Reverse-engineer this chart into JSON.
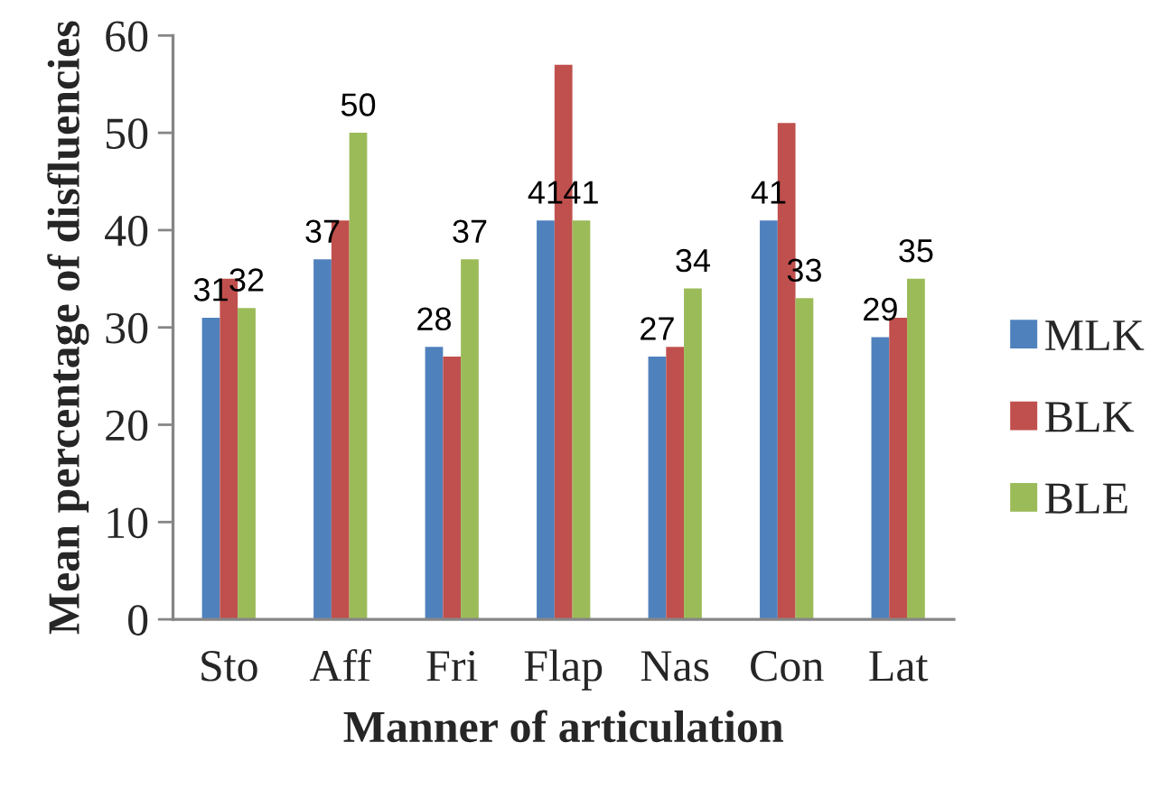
{
  "chart_data": {
    "type": "bar",
    "xlabel": "Manner of articulation",
    "ylabel": "Mean percentage of disfluencies",
    "categories": [
      "Sto",
      "Aff",
      "Fri",
      "Flap",
      "Nas",
      "Con",
      "Lat"
    ],
    "series": [
      {
        "name": "MLK",
        "color": "#4f81bd",
        "values": [
          31,
          37,
          28,
          41,
          27,
          41,
          29
        ],
        "value_labels": [
          "31",
          "37",
          "28",
          "41",
          "27",
          "41",
          "29"
        ]
      },
      {
        "name": "BLK",
        "color": "#c0504d",
        "values": [
          35,
          41,
          27,
          57,
          28,
          51,
          31
        ]
      },
      {
        "name": "BLE",
        "color": "#9bbb59",
        "values": [
          32,
          50,
          37,
          41,
          34,
          33,
          35
        ],
        "value_labels": [
          "32",
          "50",
          "37",
          "41",
          "34",
          "33",
          "35"
        ]
      }
    ],
    "ylim": [
      0,
      60
    ],
    "yticks": [
      0,
      10,
      20,
      30,
      40,
      50,
      60
    ],
    "grid": false,
    "legend": "right"
  }
}
